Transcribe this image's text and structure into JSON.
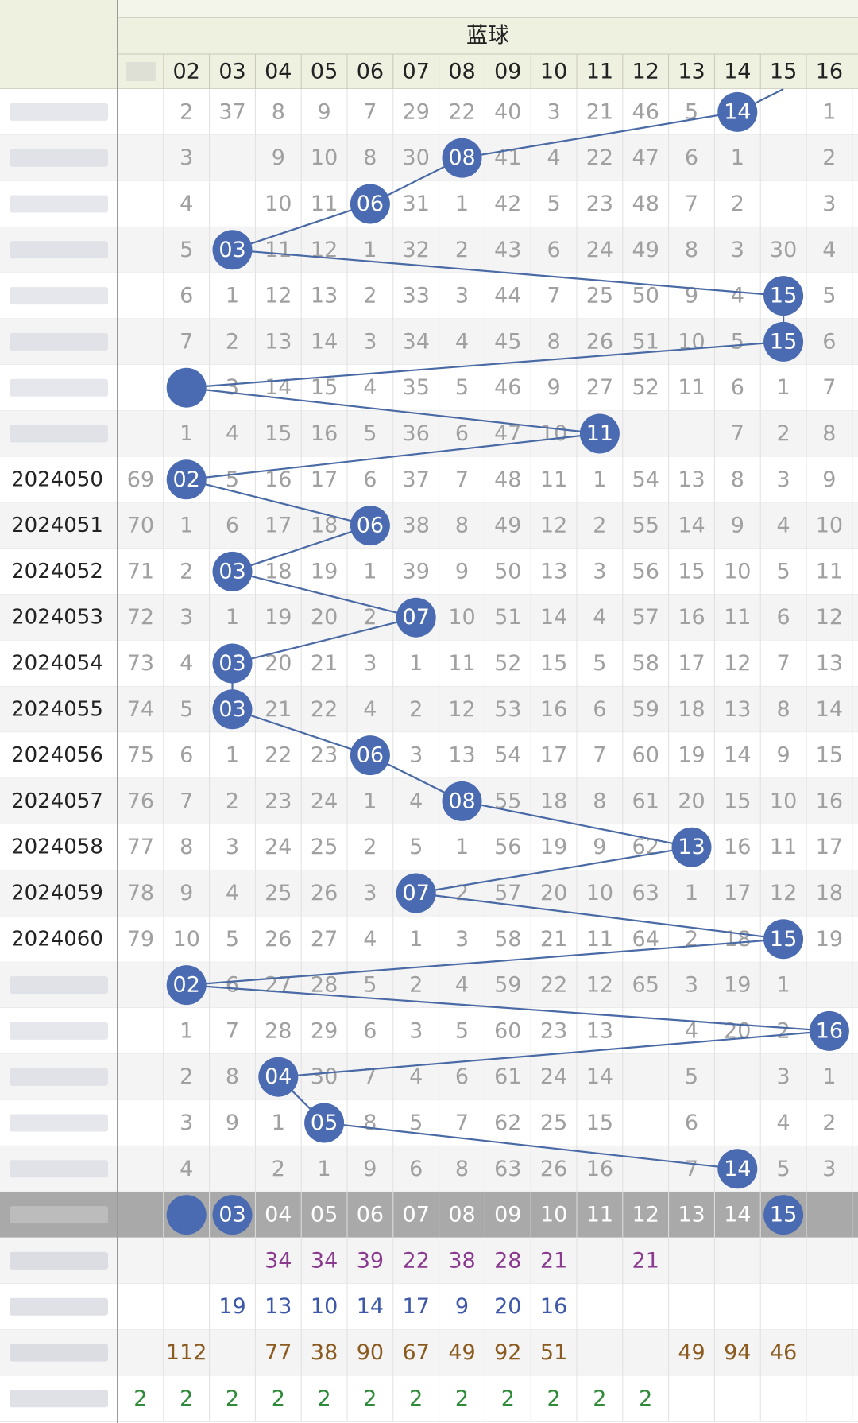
{
  "header": {
    "group_title": "蓝球",
    "first_col_label": "",
    "columns": [
      "",
      "02",
      "03",
      "04",
      "05",
      "06",
      "07",
      "08",
      "09",
      "10",
      "11",
      "12",
      "13",
      "14",
      "15",
      "16"
    ]
  },
  "colors": {
    "ball": "#4a6bb1",
    "line": "#4a6aa5",
    "header_bg": "#eef0e0",
    "alt_row": "#f4f4f4",
    "grey_text": "#a0a0a0",
    "dark_text": "#222222",
    "highlight_row": "#a9a9a9",
    "purple": "#8a3a8f",
    "blue": "#3d58a8",
    "brown": "#8b5a1e",
    "green": "#2f8a3a"
  },
  "chart_data": {
    "type": "table",
    "title": "",
    "group_title": "蓝球",
    "columns": [
      "02",
      "03",
      "04",
      "05",
      "06",
      "07",
      "08",
      "09",
      "10",
      "11",
      "12",
      "13",
      "14",
      "15",
      "16"
    ],
    "periods": [
      "",
      "",
      "",
      "",
      "",
      "",
      "",
      "",
      "2024050",
      "2024051",
      "2024052",
      "2024053",
      "2024054",
      "2024055",
      "2024056",
      "2024057",
      "2024058",
      "2024059",
      "2024060",
      "",
      "",
      "",
      "",
      ""
    ],
    "rows": [
      [
        "",
        "2",
        "37",
        "8",
        "9",
        "7",
        "29",
        "22",
        "40",
        "3",
        "21",
        "46",
        "5",
        "",
        "",
        "1"
      ],
      [
        "",
        "3",
        "",
        "9",
        "10",
        "8",
        "30",
        "",
        "41",
        "4",
        "22",
        "47",
        "6",
        "1",
        "",
        "2"
      ],
      [
        "",
        "4",
        "",
        "10",
        "11",
        "",
        "31",
        "1",
        "42",
        "5",
        "23",
        "48",
        "7",
        "2",
        "",
        "3"
      ],
      [
        "",
        "5",
        "",
        "11",
        "12",
        "1",
        "32",
        "2",
        "43",
        "6",
        "24",
        "49",
        "8",
        "3",
        "30",
        "4"
      ],
      [
        "",
        "6",
        "1",
        "12",
        "13",
        "2",
        "33",
        "3",
        "44",
        "7",
        "25",
        "50",
        "9",
        "4",
        "",
        "5"
      ],
      [
        "",
        "7",
        "2",
        "13",
        "14",
        "3",
        "34",
        "4",
        "45",
        "8",
        "26",
        "51",
        "10",
        "5",
        "",
        "6"
      ],
      [
        "",
        "",
        "3",
        "14",
        "15",
        "4",
        "35",
        "5",
        "46",
        "9",
        "27",
        "52",
        "11",
        "6",
        "1",
        "7"
      ],
      [
        "",
        "1",
        "4",
        "15",
        "16",
        "5",
        "36",
        "6",
        "47",
        "10",
        "",
        "",
        "",
        "7",
        "2",
        "8"
      ],
      [
        "69",
        "",
        "5",
        "16",
        "17",
        "6",
        "37",
        "7",
        "48",
        "11",
        "1",
        "54",
        "13",
        "8",
        "3",
        "9"
      ],
      [
        "70",
        "1",
        "6",
        "17",
        "18",
        "",
        "38",
        "8",
        "49",
        "12",
        "2",
        "55",
        "14",
        "9",
        "4",
        "10"
      ],
      [
        "71",
        "2",
        "",
        "18",
        "19",
        "1",
        "39",
        "9",
        "50",
        "13",
        "3",
        "56",
        "15",
        "10",
        "5",
        "11"
      ],
      [
        "72",
        "3",
        "1",
        "19",
        "20",
        "2",
        "",
        "10",
        "51",
        "14",
        "4",
        "57",
        "16",
        "11",
        "6",
        "12"
      ],
      [
        "73",
        "4",
        "",
        "20",
        "21",
        "3",
        "1",
        "11",
        "52",
        "15",
        "5",
        "58",
        "17",
        "12",
        "7",
        "13"
      ],
      [
        "74",
        "5",
        "",
        "21",
        "22",
        "4",
        "2",
        "12",
        "53",
        "16",
        "6",
        "59",
        "18",
        "13",
        "8",
        "14"
      ],
      [
        "75",
        "6",
        "1",
        "22",
        "23",
        "",
        "3",
        "13",
        "54",
        "17",
        "7",
        "60",
        "19",
        "14",
        "9",
        "15"
      ],
      [
        "76",
        "7",
        "2",
        "23",
        "24",
        "1",
        "4",
        "",
        "55",
        "18",
        "8",
        "61",
        "20",
        "15",
        "10",
        "16"
      ],
      [
        "77",
        "8",
        "3",
        "24",
        "25",
        "2",
        "5",
        "1",
        "56",
        "19",
        "9",
        "62",
        "",
        "16",
        "11",
        "17"
      ],
      [
        "78",
        "9",
        "4",
        "25",
        "26",
        "3",
        "",
        "2",
        "57",
        "20",
        "10",
        "63",
        "1",
        "17",
        "12",
        "18"
      ],
      [
        "79",
        "10",
        "5",
        "26",
        "27",
        "4",
        "1",
        "3",
        "58",
        "21",
        "11",
        "64",
        "2",
        "18",
        "",
        "19"
      ],
      [
        "",
        "",
        "6",
        "27",
        "28",
        "5",
        "2",
        "4",
        "59",
        "22",
        "12",
        "65",
        "3",
        "19",
        "1",
        ""
      ],
      [
        "",
        "1",
        "7",
        "28",
        "29",
        "6",
        "3",
        "5",
        "60",
        "23",
        "13",
        "",
        "4",
        "20",
        "2",
        ""
      ],
      [
        "",
        "2",
        "8",
        "",
        "30",
        "7",
        "4",
        "6",
        "61",
        "24",
        "14",
        "",
        "5",
        "",
        "3",
        "1"
      ],
      [
        "",
        "3",
        "9",
        "1",
        "",
        "8",
        "5",
        "7",
        "62",
        "25",
        "15",
        "",
        "6",
        "",
        "4",
        "2"
      ],
      [
        "",
        "4",
        "",
        "2",
        "1",
        "9",
        "6",
        "8",
        "63",
        "26",
        "16",
        "",
        "7",
        "",
        "5",
        "3"
      ]
    ],
    "balls": [
      {
        "row": 0,
        "col": 13,
        "label": "14"
      },
      {
        "row": 1,
        "col": 7,
        "label": "08"
      },
      {
        "row": 2,
        "col": 5,
        "label": "06"
      },
      {
        "row": 3,
        "col": 2,
        "label": "03"
      },
      {
        "row": 4,
        "col": 14,
        "label": "15"
      },
      {
        "row": 5,
        "col": 14,
        "label": "15"
      },
      {
        "row": 6,
        "col": 1,
        "label": ""
      },
      {
        "row": 7,
        "col": 10,
        "label": "11"
      },
      {
        "row": 8,
        "col": 1,
        "label": "02"
      },
      {
        "row": 9,
        "col": 5,
        "label": "06"
      },
      {
        "row": 10,
        "col": 2,
        "label": "03"
      },
      {
        "row": 11,
        "col": 6,
        "label": "07"
      },
      {
        "row": 12,
        "col": 2,
        "label": "03"
      },
      {
        "row": 13,
        "col": 2,
        "label": "03"
      },
      {
        "row": 14,
        "col": 5,
        "label": "06"
      },
      {
        "row": 15,
        "col": 7,
        "label": "08"
      },
      {
        "row": 16,
        "col": 12,
        "label": "13"
      },
      {
        "row": 17,
        "col": 6,
        "label": "07"
      },
      {
        "row": 18,
        "col": 14,
        "label": "15"
      },
      {
        "row": 19,
        "col": 1,
        "label": "02"
      },
      {
        "row": 20,
        "col": 15,
        "label": "16"
      },
      {
        "row": 21,
        "col": 3,
        "label": "04"
      },
      {
        "row": 22,
        "col": 4,
        "label": "05"
      },
      {
        "row": 23,
        "col": 13,
        "label": "14"
      }
    ],
    "select_row": {
      "label": "",
      "cells": [
        "",
        "",
        "03",
        "04",
        "05",
        "06",
        "07",
        "08",
        "09",
        "10",
        "11",
        "12",
        "13",
        "14",
        "15",
        ""
      ],
      "balls": [
        1,
        2,
        14
      ]
    },
    "stat_rows": [
      {
        "label": "",
        "color": "purple",
        "cells": [
          "",
          "",
          "",
          "34",
          "34",
          "39",
          "22",
          "38",
          "28",
          "21",
          "",
          "21",
          "",
          "",
          "",
          ""
        ]
      },
      {
        "label": "",
        "color": "blue",
        "cells": [
          "",
          "",
          "19",
          "13",
          "10",
          "14",
          "17",
          "9",
          "20",
          "16",
          "",
          "",
          "",
          "",
          "",
          ""
        ]
      },
      {
        "label": "",
        "color": "brown",
        "cells": [
          "",
          "112",
          "",
          "77",
          "38",
          "90",
          "67",
          "49",
          "92",
          "51",
          "",
          "",
          "49",
          "94",
          "46",
          ""
        ]
      },
      {
        "label": "",
        "color": "green",
        "cells": [
          "2",
          "2",
          "2",
          "2",
          "2",
          "2",
          "2",
          "2",
          "2",
          "2",
          "2",
          "2",
          "",
          "",
          "",
          ""
        ]
      }
    ]
  }
}
